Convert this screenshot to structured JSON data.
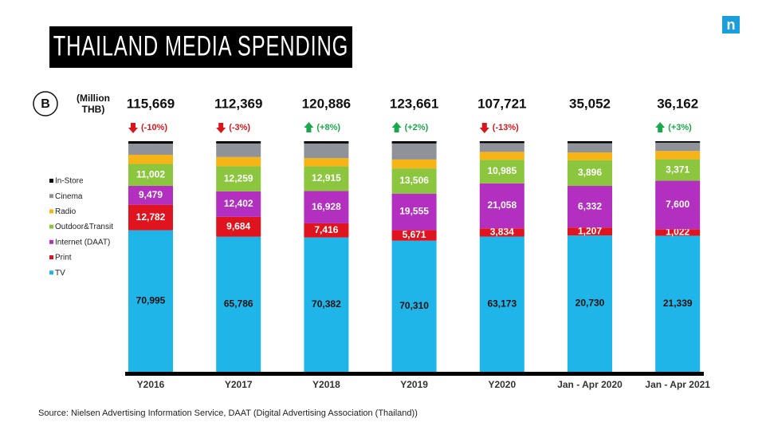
{
  "chart_data": {
    "type": "stacked_bar_100",
    "title": "THAILAND MEDIA SPENDING",
    "unit_label": "(Million THB)",
    "currency_symbol": "B",
    "logo": "n",
    "source": "Source: Nielsen Advertising Information Service, DAAT  (Digital Advertising Association (Thailand))",
    "categories": [
      "Y2016",
      "Y2017",
      "Y2018",
      "Y2019",
      "Y2020",
      "Jan - Apr 2020",
      "Jan - Apr 2021"
    ],
    "totals": [
      {
        "value": 115669,
        "label": "115,669"
      },
      {
        "value": 112369,
        "label": "112,369"
      },
      {
        "value": 120886,
        "label": "120,886"
      },
      {
        "value": 123661,
        "label": "123,661"
      },
      {
        "value": 107721,
        "label": "107,721"
      },
      {
        "value": 35052,
        "label": "35,052"
      },
      {
        "value": 36162,
        "label": "36,162"
      }
    ],
    "changes": [
      {
        "value": -10,
        "label": "(-10%)"
      },
      {
        "value": -3,
        "label": "(-3%)"
      },
      {
        "value": 8,
        "label": "(+8%)"
      },
      {
        "value": 2,
        "label": "(+2%)"
      },
      {
        "value": -13,
        "label": "(-13%)"
      },
      null,
      {
        "value": 3,
        "label": "(+3%)"
      }
    ],
    "series": [
      {
        "name": "TV",
        "color": "#1fb5e8",
        "label_color": "#111111",
        "values": [
          70995,
          65786,
          70382,
          70310,
          63173,
          20730,
          21339
        ],
        "value_labels": [
          "70,995",
          "65,786",
          "70,382",
          "70,310",
          "63,173",
          "20,730",
          "21,339"
        ]
      },
      {
        "name": "Print",
        "color": "#e0141e",
        "label_color": "#ffffff",
        "values": [
          12782,
          9684,
          7416,
          5671,
          3834,
          1207,
          1022
        ],
        "value_labels": [
          "12,782",
          "9,684",
          "7,416",
          "5,671",
          "3,834",
          "1,207",
          "1,022"
        ]
      },
      {
        "name": "Internet (DAAT)",
        "color": "#b22fc0",
        "label_color": "#ffffff",
        "values": [
          9479,
          12402,
          16928,
          19555,
          21058,
          6332,
          7600
        ],
        "value_labels": [
          "9,479",
          "12,402",
          "16,928",
          "19,555",
          "21,058",
          "6,332",
          "7,600"
        ]
      },
      {
        "name": "Outdoor&Transit",
        "color": "#8cc63f",
        "label_color": "#ffffff",
        "values": [
          11002,
          12259,
          12915,
          13506,
          10985,
          3896,
          3371
        ],
        "value_labels": [
          "11,002",
          "12,259",
          "12,915",
          "13,506",
          "10,985",
          "3,896",
          "3,371"
        ]
      },
      {
        "name": "Radio",
        "color": "#f6b417",
        "values": [
          4600,
          4500,
          4300,
          4800,
          3700,
          1200,
          1300
        ]
      },
      {
        "name": "Cinema",
        "color": "#8f9399",
        "values": [
          5600,
          6600,
          7700,
          8600,
          4100,
          1400,
          1300
        ]
      },
      {
        "name": "In-Store",
        "color": "#000000",
        "values": [
          1200,
          1100,
          1200,
          1200,
          900,
          300,
          230
        ]
      }
    ]
  }
}
